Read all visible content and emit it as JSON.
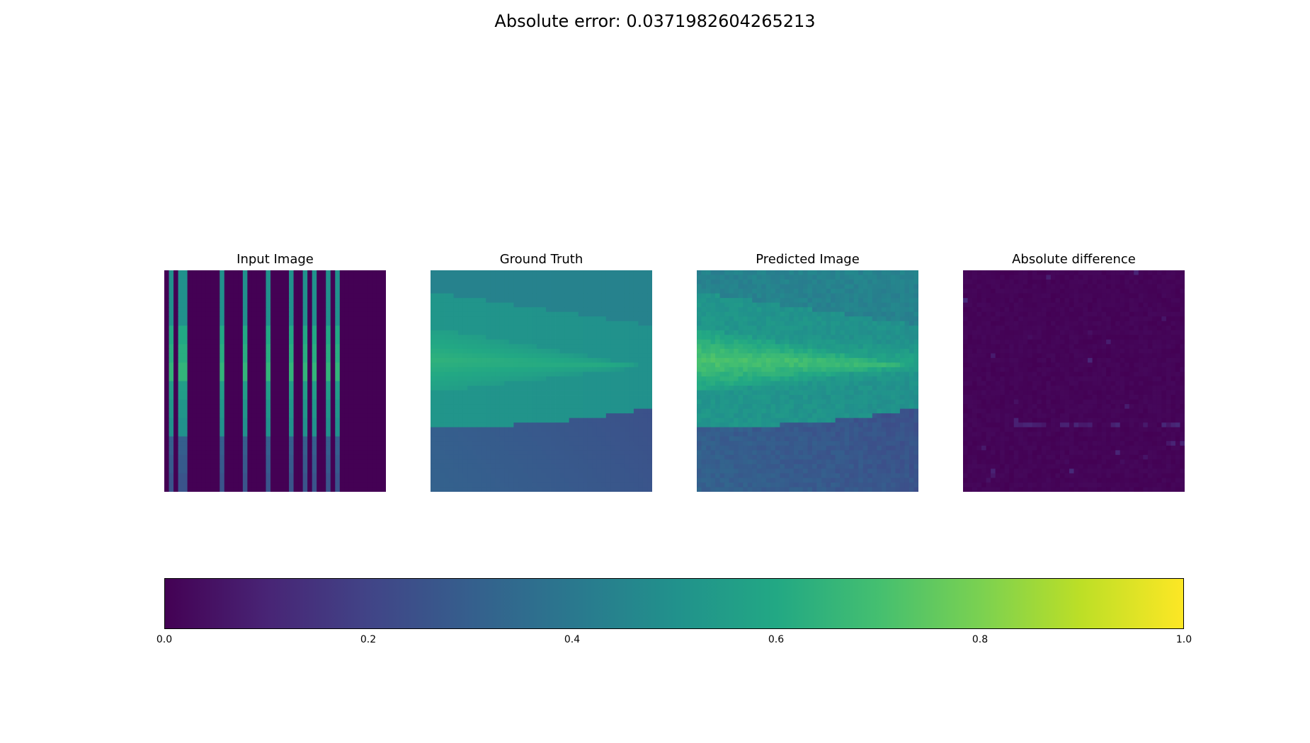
{
  "figure": {
    "suptitle": "Absolute error: 0.0371982604265213"
  },
  "colormap": "viridis",
  "chart_data": [
    {
      "type": "heatmap",
      "title": "Input Image",
      "vlim": [
        0,
        1
      ],
      "description_values": {
        "background": 0.0,
        "stripe_columns": [
          1,
          3,
          4,
          12,
          17,
          22,
          27,
          30,
          32,
          35,
          37
        ],
        "stripe_profile": [
          0.5,
          0.5,
          0.5,
          0.6,
          0.62,
          0.65,
          0.55,
          0.52,
          0.5,
          0.3,
          0.28,
          0.26
        ]
      }
    },
    {
      "type": "heatmap",
      "title": "Ground Truth",
      "vlim": [
        0,
        1
      ],
      "description_values": {
        "top_band": 0.44,
        "mid_band_peak": 0.64,
        "lower_band": 0.5,
        "bottom_region": 0.3
      }
    },
    {
      "type": "heatmap",
      "title": "Predicted Image",
      "vlim": [
        0,
        1
      ],
      "description_values": {
        "top_band": 0.44,
        "mid_band_peak": 0.72,
        "lower_band": 0.52,
        "bottom_region": 0.32
      }
    },
    {
      "type": "heatmap",
      "title": "Absolute difference",
      "vlim": [
        0,
        1
      ],
      "description_values": {
        "background": 0.0,
        "max_visible": 0.12
      }
    }
  ],
  "colorbar": {
    "ticks": [
      "0.0",
      "0.2",
      "0.4",
      "0.6",
      "0.8",
      "1.0"
    ],
    "range": [
      0,
      1
    ]
  }
}
